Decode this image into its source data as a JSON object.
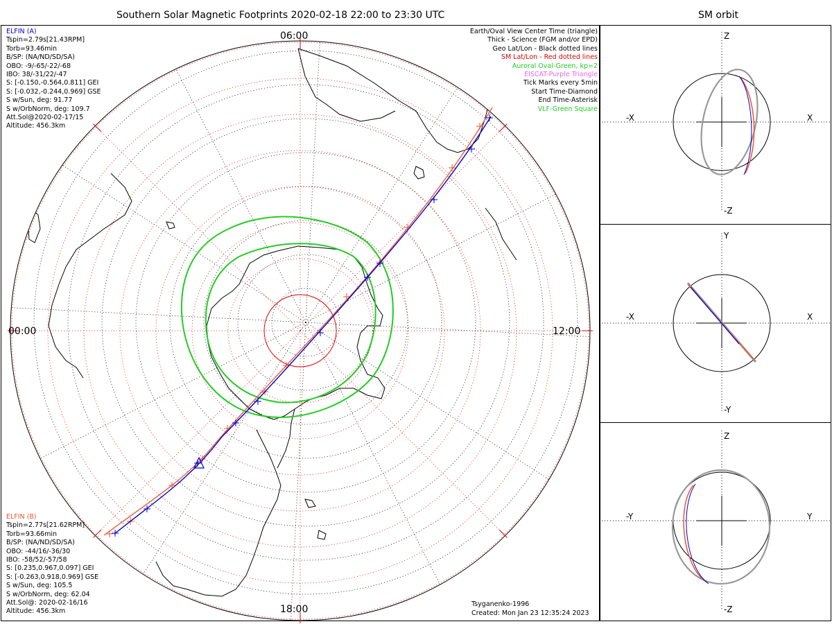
{
  "title": "Southern Solar Magnetic Footprints 2020-02-18 22:00 to 23:30 UTC",
  "orbit_title": "SM orbit",
  "colors": {
    "elfin_a": "#0000cc",
    "elfin_b": "#ee5533",
    "oval": "#22cc22",
    "sm_grid": "#dd0000",
    "eiscat": "#ee66ee",
    "orbit_trace": "#999999"
  },
  "elfin_a": {
    "name": "ELFIN (A)",
    "lines": [
      "Tspin=2.79s[21.43RPM]",
      "Torb=93.46min",
      "B/SP: (NA/ND/SD/SA)",
      "OBO: -9/-65/-22/-68",
      "IBO: 38/-31/22/-47",
      "S: [-0.150,-0.564,0.811] GEI",
      "S: [-0.032,-0.244,0.969] GSE",
      "S w/Sun, deg: 91.77",
      "S w/OrbNorm, deg: 109.7",
      "Att.Sol@2020-02-17/15",
      "Altitude: 456.3km"
    ]
  },
  "elfin_b": {
    "name": "ELFIN (B)",
    "lines": [
      "Tspin=2.77s[21.62RPM]",
      "Torb=93.66min",
      "B/SP: (NA/ND/SD/SA)",
      "OBO: -44/16/-36/30",
      "IBO: -58/52/-57/58",
      "S: [0.235,0.967,0.097] GEI",
      "S: [-0.263,0.918,0.969] GSE",
      "S w/Sun, deg: 105.5",
      "S w/OrbNorm, deg: 62.04",
      "Att.Sol@: 2020-02-16/16",
      "Altitude: 456.3km"
    ]
  },
  "legend": [
    {
      "text": "Earth/Oval View Center Time (triangle)",
      "color": "#000000"
    },
    {
      "text": "Thick - Science (FGM and/or EPD)",
      "color": "#000000"
    },
    {
      "text": "Geo Lat/Lon - Black dotted lines",
      "color": "#000000"
    },
    {
      "text": "SM Lat/Lon - Red dotted lines",
      "color": "#dd0000"
    },
    {
      "text": "Auroral Oval-Green, kp=2",
      "color": "#22cc22"
    },
    {
      "text": "EISCAT-Purple Triangle",
      "color": "#ee66ee"
    },
    {
      "text": "Tick Marks every 5min",
      "color": "#000000"
    },
    {
      "text": "Start Time-Diamond",
      "color": "#000000"
    },
    {
      "text": "End Time-Asterisk",
      "color": "#000000"
    },
    {
      "text": "VLF-Green Square",
      "color": "#22cc22"
    }
  ],
  "hour_labels": {
    "top": "06:00",
    "left": "00:00",
    "right": "12:00",
    "bottom": "18:00"
  },
  "credits": {
    "author": "Tsyganenko-1996",
    "created": "Created: Mon Jan 23 12:35:24 2023"
  },
  "orbit_panels": [
    {
      "name": "xz",
      "left": "-X",
      "right": "X",
      "top": "Z",
      "bottom": "-Z"
    },
    {
      "name": "xy",
      "left": "-X",
      "right": "X",
      "top": "Y",
      "bottom": "-Y"
    },
    {
      "name": "yz",
      "left": "-Y",
      "right": "Y",
      "top": "Z",
      "bottom": "-Z"
    }
  ]
}
